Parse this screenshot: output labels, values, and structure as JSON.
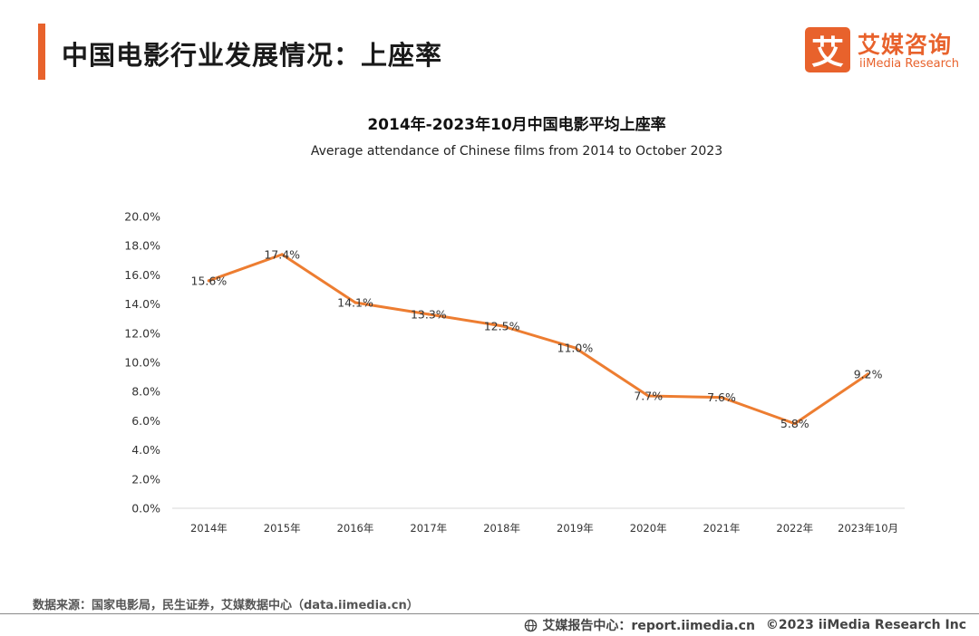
{
  "header": {
    "title": "中国电影行业发展情况：上座率",
    "logo_mark": "艾",
    "logo_cn": "艾媒咨询",
    "logo_en": "iiMedia Research"
  },
  "chart_data": {
    "type": "line",
    "title": "2014年-2023年10月中国电影平均上座率",
    "subtitle": "Average attendance of Chinese films from 2014 to October 2023",
    "xlabel": "",
    "ylabel": "",
    "categories": [
      "2014年",
      "2015年",
      "2016年",
      "2017年",
      "2018年",
      "2019年",
      "2020年",
      "2021年",
      "2022年",
      "2023年10月"
    ],
    "series": [
      {
        "values": [
          15.6,
          17.4,
          14.1,
          13.3,
          12.5,
          11.0,
          7.7,
          7.6,
          5.8,
          9.2
        ],
        "labels": [
          "15.6%",
          "17.4%",
          "14.1%",
          "13.3%",
          "12.5%",
          "11.0%",
          "7.7%",
          "7.6%",
          "5.8%",
          "9.2%"
        ],
        "color": "#ed7d31"
      }
    ],
    "ylim": [
      0,
      20
    ],
    "yticks": [
      "0.0%",
      "2.0%",
      "4.0%",
      "6.0%",
      "8.0%",
      "10.0%",
      "12.0%",
      "14.0%",
      "16.0%",
      "18.0%",
      "20.0%"
    ],
    "grid": false,
    "legend": "none"
  },
  "source": "数据来源：国家电影局，民生证券，艾媒数据中心（data.iimedia.cn）",
  "footer": {
    "report_center": "艾媒报告中心：report.iimedia.cn",
    "copyright": "©2023 iiMedia Research Inc"
  },
  "colors": {
    "accent": "#e8622c",
    "line": "#ed7d31"
  }
}
